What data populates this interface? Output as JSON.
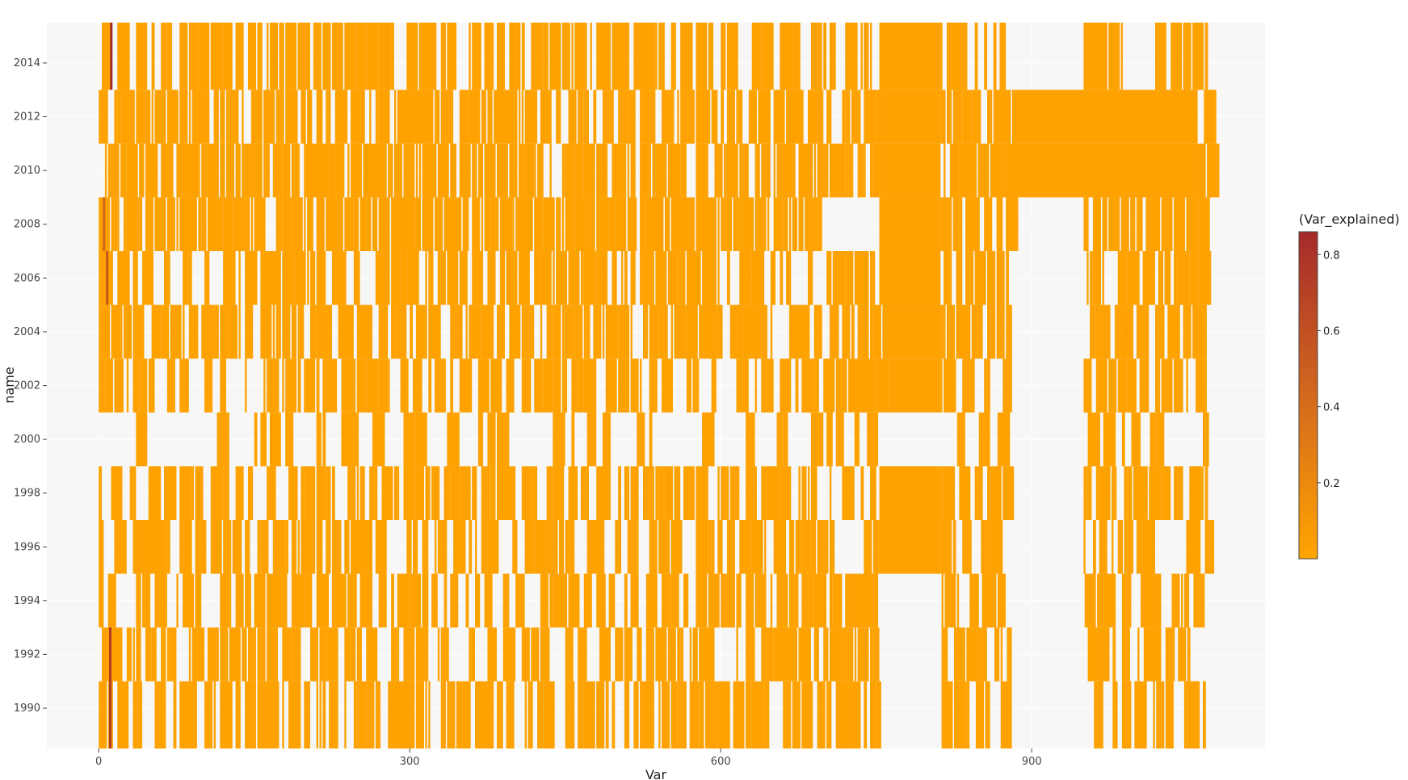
{
  "chart_data": {
    "type": "heatmap",
    "title": "",
    "xlabel": "Var",
    "ylabel": "name",
    "xlim": [
      -50,
      1125
    ],
    "ylim": [
      1988.5,
      2015.5
    ],
    "x_ticks": [
      "0",
      "300",
      "600",
      "900"
    ],
    "y_ticks": [
      "1990",
      "1992",
      "1994",
      "1996",
      "1998",
      "2000",
      "2002",
      "2004",
      "2006",
      "2008",
      "2010",
      "2012",
      "2014"
    ],
    "grid": true,
    "colorbar": {
      "title": "(Var_explained)",
      "ticks": [
        "0.2",
        "0.4",
        "0.6",
        "0.8"
      ],
      "range": [
        0,
        0.86
      ],
      "colors": [
        "#FFA500",
        "#A52A2A"
      ],
      "placement": "right"
    },
    "cell_value_default": 0.02,
    "highlight_cells": [
      {
        "x": 4,
        "y0": 2007,
        "y1": 2009,
        "value": 0.45
      },
      {
        "x": 7,
        "y0": 2005,
        "y1": 2007,
        "value": 0.55
      },
      {
        "x": 10,
        "y0": 1988.5,
        "y1": 1993,
        "value": 0.75
      },
      {
        "x": 11,
        "y0": 2013,
        "y1": 2015.5,
        "value": 0.86
      }
    ],
    "bands": [
      {
        "y0": 2013,
        "y1": 2015.5,
        "density": 0.55
      },
      {
        "y0": 2011,
        "y1": 2013,
        "density": 0.72
      },
      {
        "y0": 2009,
        "y1": 2011,
        "density": 0.74
      },
      {
        "y0": 2007,
        "y1": 2009,
        "density": 0.88
      },
      {
        "y0": 2005,
        "y1": 2007,
        "density": 0.62
      },
      {
        "y0": 2003,
        "y1": 2005,
        "density": 0.6
      },
      {
        "y0": 2001,
        "y1": 2003,
        "density": 0.5
      },
      {
        "y0": 1999,
        "y1": 2001,
        "density": 0.2
      },
      {
        "y0": 1997,
        "y1": 1999,
        "density": 0.55
      },
      {
        "y0": 1995,
        "y1": 1997,
        "density": 0.5
      },
      {
        "y0": 1993,
        "y1": 1995,
        "density": 0.5
      },
      {
        "y0": 1991,
        "y1": 1993,
        "density": 0.55
      },
      {
        "y0": 1988.5,
        "y1": 1991,
        "density": 0.5
      }
    ],
    "solid_blocks": [
      {
        "x0": 752,
        "x1": 812,
        "y0": 2001,
        "y1": 2015.5
      },
      {
        "x0": 752,
        "x1": 812,
        "y0": 1995,
        "y1": 1999
      },
      {
        "x0": 878,
        "x1": 1060,
        "y0": 2009,
        "y1": 2013
      }
    ],
    "empty_blocks": [
      {
        "x0": 752,
        "x1": 812,
        "y0": 1999,
        "y1": 2001
      },
      {
        "x0": 752,
        "x1": 812,
        "y0": 1988.5,
        "y1": 1995
      },
      {
        "x0": 878,
        "x1": 950,
        "y0": 1988.5,
        "y1": 2009
      },
      {
        "x0": 878,
        "x1": 950,
        "y0": 2013,
        "y1": 2015.5
      },
      {
        "x0": 698,
        "x1": 752,
        "y0": 2007,
        "y1": 2009
      }
    ],
    "x_data_max": 1070
  }
}
